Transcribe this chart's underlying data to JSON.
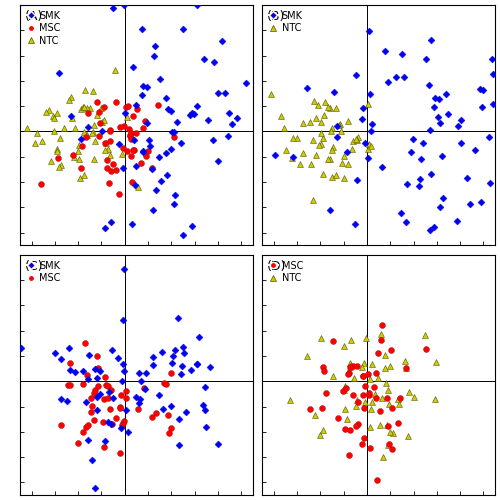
{
  "seed": 42,
  "smk_color": "#0000EE",
  "msc_color": "#FF0000",
  "ntc_color": "#CCCC00",
  "smk_marker": "D",
  "msc_marker": "o",
  "ntc_marker": "^",
  "marker_size_pts": 18,
  "legend_fontsize": 7,
  "panel_label_fontsize": 9,
  "background_color": "#ffffff",
  "ntc_edge": "#555500",
  "msc_edge": "#AA0000",
  "smk_n": 70,
  "msc_n": 50,
  "ntc_n": 55,
  "xlim": [
    -4.5,
    5.5
  ],
  "ylim": [
    -4.5,
    5.0
  ],
  "zero_x": -0.5,
  "zero_y": 0.1
}
